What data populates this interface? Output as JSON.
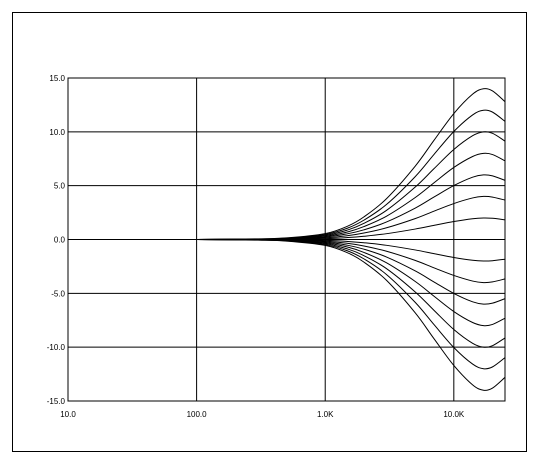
{
  "chart_data": {
    "type": "line",
    "title": "",
    "xlabel": "",
    "ylabel": "",
    "x_scale": "log",
    "xlim": [
      10,
      25000
    ],
    "ylim": [
      -15,
      15
    ],
    "grid": true,
    "legend": "none",
    "line_color": "#000000",
    "x_ticks": [
      {
        "value": 10,
        "label": "10.0"
      },
      {
        "value": 100,
        "label": "100.0"
      },
      {
        "value": 1000,
        "label": "1.0K"
      },
      {
        "value": 10000,
        "label": "10.0K"
      }
    ],
    "y_ticks": [
      {
        "value": 15,
        "label": "15.0"
      },
      {
        "value": 10,
        "label": "10.0"
      },
      {
        "value": 5,
        "label": "5.0"
      },
      {
        "value": 0,
        "label": "0.0"
      },
      {
        "value": -5,
        "label": "-5.0"
      },
      {
        "value": -10,
        "label": "-10.0"
      },
      {
        "value": -15,
        "label": "-15.0"
      }
    ],
    "x": [
      10,
      100,
      300,
      500,
      1000,
      1500,
      2000,
      3000,
      5000,
      7000,
      10000,
      14000,
      17000,
      20000,
      25000
    ],
    "series": [
      {
        "values": [
          0,
          0,
          0.06,
          0.15,
          0.55,
          1.25,
          2.1,
          3.8,
          6.8,
          9.2,
          11.7,
          13.5,
          14.0,
          13.8,
          12.8
        ]
      },
      {
        "values": [
          0,
          0,
          0.05,
          0.13,
          0.47,
          1.07,
          1.8,
          3.26,
          5.83,
          7.89,
          10.03,
          11.57,
          12.0,
          11.83,
          10.97
        ]
      },
      {
        "values": [
          0,
          0,
          0.04,
          0.11,
          0.39,
          0.89,
          1.5,
          2.71,
          4.86,
          6.57,
          8.36,
          9.64,
          10.0,
          9.86,
          9.14
        ]
      },
      {
        "values": [
          0,
          0,
          0.03,
          0.09,
          0.31,
          0.71,
          1.2,
          2.17,
          3.89,
          5.26,
          6.69,
          7.71,
          8.0,
          7.89,
          7.31
        ]
      },
      {
        "values": [
          0,
          0,
          0.03,
          0.07,
          0.23,
          0.54,
          0.9,
          1.63,
          2.91,
          3.94,
          5.01,
          5.79,
          6.0,
          5.91,
          5.49
        ]
      },
      {
        "values": [
          0,
          0,
          0.02,
          0.05,
          0.16,
          0.36,
          0.6,
          1.09,
          1.94,
          2.63,
          3.34,
          3.86,
          4.0,
          3.94,
          3.66
        ]
      },
      {
        "values": [
          0,
          0,
          0.01,
          0.02,
          0.08,
          0.18,
          0.3,
          0.54,
          0.97,
          1.31,
          1.67,
          1.93,
          2.0,
          1.97,
          1.83
        ]
      },
      {
        "values": [
          0,
          0,
          0,
          0,
          0,
          0,
          0,
          0,
          0,
          0,
          0,
          0,
          0,
          0,
          0
        ]
      },
      {
        "values": [
          0,
          0,
          -0.01,
          -0.02,
          -0.08,
          -0.18,
          -0.3,
          -0.54,
          -0.97,
          -1.31,
          -1.67,
          -1.93,
          -2.0,
          -1.97,
          -1.83
        ]
      },
      {
        "values": [
          0,
          0,
          -0.02,
          -0.05,
          -0.16,
          -0.36,
          -0.6,
          -1.09,
          -1.94,
          -2.63,
          -3.34,
          -3.86,
          -4.0,
          -3.94,
          -3.66
        ]
      },
      {
        "values": [
          0,
          0,
          -0.03,
          -0.07,
          -0.23,
          -0.54,
          -0.9,
          -1.63,
          -2.91,
          -3.94,
          -5.01,
          -5.79,
          -6.0,
          -5.91,
          -5.49
        ]
      },
      {
        "values": [
          0,
          0,
          -0.03,
          -0.09,
          -0.31,
          -0.71,
          -1.2,
          -2.17,
          -3.89,
          -5.26,
          -6.69,
          -7.71,
          -8.0,
          -7.89,
          -7.31
        ]
      },
      {
        "values": [
          0,
          0,
          -0.04,
          -0.11,
          -0.39,
          -0.89,
          -1.5,
          -2.71,
          -4.86,
          -6.57,
          -8.36,
          -9.64,
          -10.0,
          -9.86,
          -9.14
        ]
      },
      {
        "values": [
          0,
          0,
          -0.05,
          -0.13,
          -0.47,
          -1.07,
          -1.8,
          -3.26,
          -5.83,
          -7.89,
          -10.03,
          -11.57,
          -12.0,
          -11.83,
          -10.97
        ]
      },
      {
        "values": [
          0,
          0,
          -0.06,
          -0.15,
          -0.55,
          -1.25,
          -2.1,
          -3.8,
          -6.8,
          -9.2,
          -11.7,
          -13.5,
          -14.0,
          -13.8,
          -12.8
        ]
      }
    ]
  }
}
